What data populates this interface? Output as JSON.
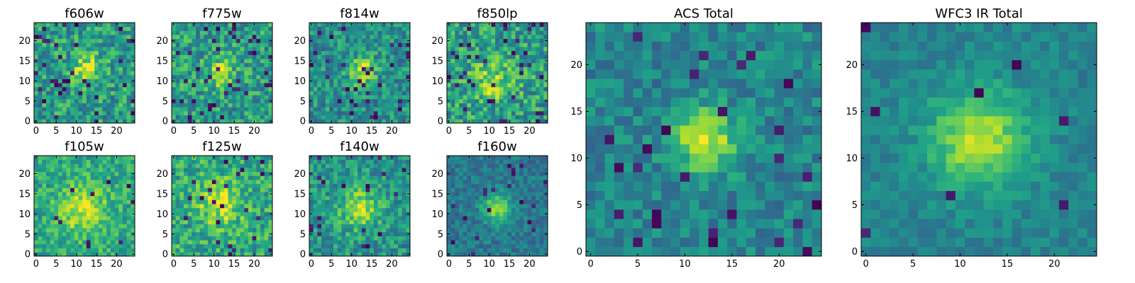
{
  "figure": {
    "description_free": true
  },
  "colors": {
    "colormap": "viridis",
    "axes_frame": "#000000",
    "background": "#ffffff"
  },
  "chart_data": [
    {
      "type": "heatmap",
      "id": "f606w",
      "title": "f606w",
      "grid": [
        25,
        25
      ],
      "xlim": [
        0,
        24
      ],
      "ylim": [
        0,
        24
      ],
      "xticks": [
        0,
        5,
        10,
        15,
        20
      ],
      "xtick_labels": [
        "0",
        "5",
        "10",
        "15",
        "20"
      ],
      "yticks": [
        0,
        5,
        10,
        15,
        20
      ],
      "ytick_labels": [
        "0",
        "5",
        "10",
        "15",
        "20"
      ],
      "source": {
        "cx": 12.5,
        "cy": 13.0,
        "sigma": 2.6,
        "amp": 0.35
      },
      "noise": 0.22,
      "base": 0.55,
      "seed": 11,
      "dark_pixel_frac": 0.06
    },
    {
      "type": "heatmap",
      "id": "f775w",
      "title": "f775w",
      "grid": [
        25,
        25
      ],
      "xlim": [
        0,
        24
      ],
      "ylim": [
        0,
        24
      ],
      "xticks": [
        0,
        5,
        10,
        15,
        20
      ],
      "xtick_labels": [
        "0",
        "5",
        "10",
        "15",
        "20"
      ],
      "yticks": [
        0,
        5,
        10,
        15,
        20
      ],
      "ytick_labels": [
        "0",
        "5",
        "10",
        "15",
        "20"
      ],
      "source": {
        "cx": 11.5,
        "cy": 12.0,
        "sigma": 2.4,
        "amp": 0.35
      },
      "noise": 0.22,
      "base": 0.55,
      "seed": 23,
      "dark_pixel_frac": 0.06
    },
    {
      "type": "heatmap",
      "id": "f814w",
      "title": "f814w",
      "grid": [
        25,
        25
      ],
      "xlim": [
        0,
        24
      ],
      "ylim": [
        0,
        24
      ],
      "xticks": [
        0,
        5,
        10,
        15,
        20
      ],
      "xtick_labels": [
        "0",
        "5",
        "10",
        "15",
        "20"
      ],
      "yticks": [
        0,
        5,
        10,
        15,
        20
      ],
      "ytick_labels": [
        "0",
        "5",
        "10",
        "15",
        "20"
      ],
      "source": {
        "cx": 12.5,
        "cy": 12.5,
        "sigma": 2.4,
        "amp": 0.4
      },
      "noise": 0.2,
      "base": 0.5,
      "seed": 37,
      "dark_pixel_frac": 0.05
    },
    {
      "type": "heatmap",
      "id": "f850lp",
      "title": "f850lp",
      "grid": [
        25,
        25
      ],
      "xlim": [
        0,
        24
      ],
      "ylim": [
        0,
        24
      ],
      "xticks": [
        0,
        5,
        10,
        15,
        20
      ],
      "xtick_labels": [
        "0",
        "5",
        "10",
        "15",
        "20"
      ],
      "yticks": [
        0,
        5,
        10,
        15,
        20
      ],
      "ytick_labels": [
        "0",
        "5",
        "10",
        "15",
        "20"
      ],
      "source": {
        "cx": 11.0,
        "cy": 10.0,
        "sigma": 3.5,
        "amp": 0.3
      },
      "noise": 0.24,
      "base": 0.55,
      "seed": 41,
      "dark_pixel_frac": 0.06
    },
    {
      "type": "heatmap",
      "id": "f105w",
      "title": "f105w",
      "grid": [
        25,
        25
      ],
      "xlim": [
        0,
        24
      ],
      "ylim": [
        0,
        24
      ],
      "xticks": [
        0,
        5,
        10,
        15,
        20
      ],
      "xtick_labels": [
        "0",
        "5",
        "10",
        "15",
        "20"
      ],
      "yticks": [
        0,
        5,
        10,
        15,
        20
      ],
      "ytick_labels": [
        "0",
        "5",
        "10",
        "15",
        "20"
      ],
      "source": {
        "cx": 11.5,
        "cy": 11.0,
        "sigma": 4.5,
        "amp": 0.3
      },
      "noise": 0.16,
      "base": 0.6,
      "seed": 53,
      "dark_pixel_frac": 0.02
    },
    {
      "type": "heatmap",
      "id": "f125w",
      "title": "f125w",
      "grid": [
        25,
        25
      ],
      "xlim": [
        0,
        24
      ],
      "ylim": [
        0,
        24
      ],
      "xticks": [
        0,
        5,
        10,
        15,
        20
      ],
      "xtick_labels": [
        "0",
        "5",
        "10",
        "15",
        "20"
      ],
      "yticks": [
        0,
        5,
        10,
        15,
        20
      ],
      "ytick_labels": [
        "0",
        "5",
        "10",
        "15",
        "20"
      ],
      "source": {
        "cx": 11.5,
        "cy": 12.5,
        "sigma": 4.0,
        "amp": 0.3
      },
      "noise": 0.2,
      "base": 0.6,
      "seed": 67,
      "dark_pixel_frac": 0.04
    },
    {
      "type": "heatmap",
      "id": "f140w",
      "title": "f140w",
      "grid": [
        25,
        25
      ],
      "xlim": [
        0,
        24
      ],
      "ylim": [
        0,
        24
      ],
      "xticks": [
        0,
        5,
        10,
        15,
        20
      ],
      "xtick_labels": [
        "0",
        "5",
        "10",
        "15",
        "20"
      ],
      "yticks": [
        0,
        5,
        10,
        15,
        20
      ],
      "ytick_labels": [
        "0",
        "5",
        "10",
        "15",
        "20"
      ],
      "source": {
        "cx": 12.0,
        "cy": 11.5,
        "sigma": 3.5,
        "amp": 0.35
      },
      "noise": 0.18,
      "base": 0.52,
      "seed": 79,
      "dark_pixel_frac": 0.04
    },
    {
      "type": "heatmap",
      "id": "f160w",
      "title": "f160w",
      "grid": [
        25,
        25
      ],
      "xlim": [
        0,
        24
      ],
      "ylim": [
        0,
        24
      ],
      "xticks": [
        0,
        5,
        10,
        15,
        20
      ],
      "xtick_labels": [
        "0",
        "5",
        "10",
        "15",
        "20"
      ],
      "yticks": [
        0,
        5,
        10,
        15,
        20
      ],
      "ytick_labels": [
        "0",
        "5",
        "10",
        "15",
        "20"
      ],
      "source": {
        "cx": 12.0,
        "cy": 11.5,
        "sigma": 2.6,
        "amp": 0.45
      },
      "noise": 0.12,
      "base": 0.4,
      "seed": 97,
      "dark_pixel_frac": 0.03
    },
    {
      "type": "heatmap",
      "id": "acs-total",
      "title": "ACS Total",
      "grid": [
        25,
        25
      ],
      "xlim": [
        0,
        24
      ],
      "ylim": [
        0,
        24
      ],
      "xticks": [
        0,
        5,
        10,
        15,
        20
      ],
      "xtick_labels": [
        "0",
        "5",
        "10",
        "15",
        "20"
      ],
      "yticks": [
        0,
        5,
        10,
        15,
        20
      ],
      "ytick_labels": [
        "0",
        "5",
        "10",
        "15",
        "20"
      ],
      "source": {
        "cx": 12.0,
        "cy": 12.0,
        "sigma": 2.3,
        "amp": 0.5
      },
      "noise": 0.14,
      "base": 0.45,
      "seed": 113,
      "dark_pixel_frac": 0.05
    },
    {
      "type": "heatmap",
      "id": "wfc3-ir-total",
      "title": "WFC3 IR Total",
      "grid": [
        25,
        25
      ],
      "xlim": [
        0,
        24
      ],
      "ylim": [
        0,
        24
      ],
      "xticks": [
        0,
        5,
        10,
        15,
        20
      ],
      "xtick_labels": [
        "0",
        "5",
        "10",
        "15",
        "20"
      ],
      "yticks": [
        0,
        5,
        10,
        15,
        20
      ],
      "ytick_labels": [
        "0",
        "5",
        "10",
        "15",
        "20"
      ],
      "source": {
        "cx": 12.0,
        "cy": 12.0,
        "sigma": 3.6,
        "amp": 0.45
      },
      "noise": 0.09,
      "base": 0.45,
      "seed": 131,
      "dark_pixel_frac": 0.01
    }
  ]
}
